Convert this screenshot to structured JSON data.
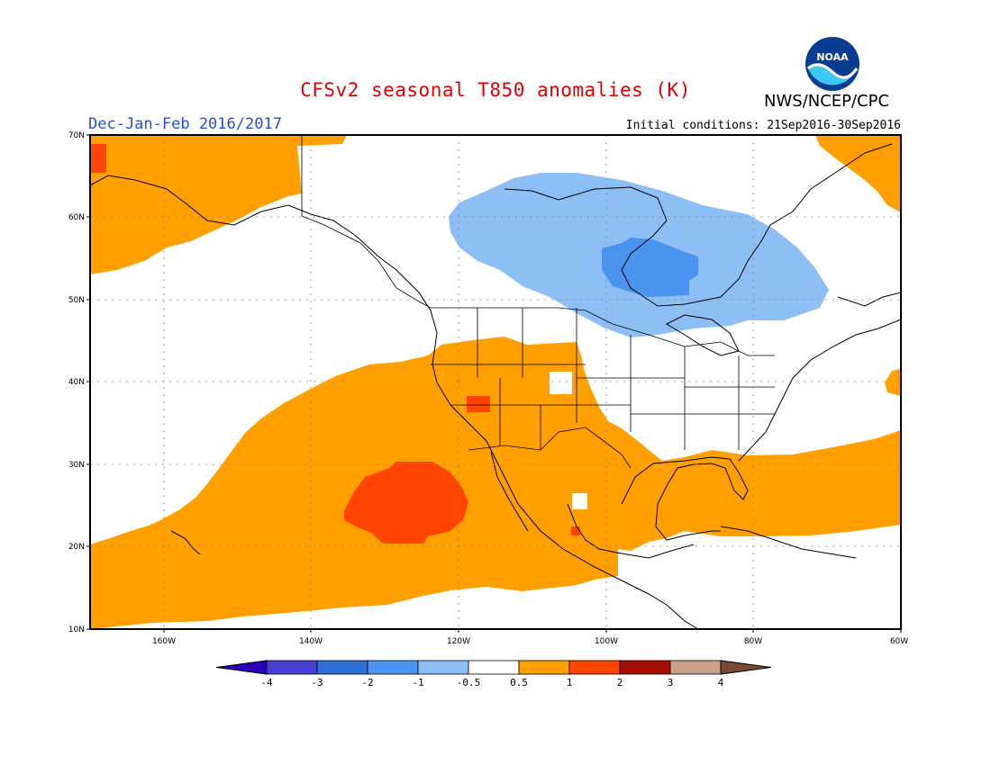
{
  "title": "CFSv2 seasonal T850 anomalies (K)",
  "agency": "NWS/NCEP/CPC",
  "logo_text": "NOAA",
  "season": "Dec-Jan-Feb 2016/2017",
  "initial_conditions": "Initial conditions: 21Sep2016-30Sep2016",
  "axes": {
    "lat_labels": [
      "70N",
      "60N",
      "50N",
      "40N",
      "30N",
      "20N",
      "10N"
    ],
    "lon_labels": [
      "160W",
      "140W",
      "120W",
      "100W",
      "80W",
      "60W"
    ]
  },
  "legend": {
    "labels": [
      "-4",
      "-3",
      "-2",
      "-1",
      "-0.5",
      "0.5",
      "1",
      "2",
      "3",
      "4"
    ],
    "colors": [
      "#2b00b8",
      "#4a3fd3",
      "#2f6fd6",
      "#4a94ef",
      "#8dbff5",
      "#ffffff",
      "#ff9f00",
      "#ff4500",
      "#a50f00",
      "#c9a088",
      "#7a4a35"
    ]
  },
  "colors": {
    "warm1": "#ff9f00",
    "warm2": "#ff4500",
    "cool1": "#8dbff5",
    "cool2": "#4a94ef",
    "coast": "#000000"
  }
}
